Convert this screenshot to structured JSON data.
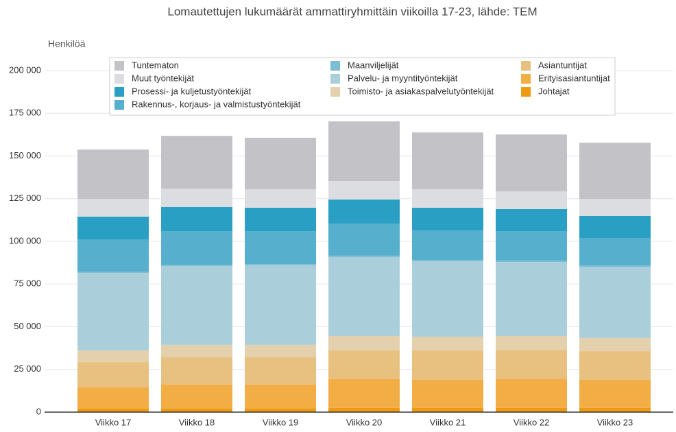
{
  "chart_data": {
    "type": "stacked-bar",
    "title": "Lomautettujen lukumäärät ammattiryhmittäin viikoilla 17-23, lähde: TEM",
    "y_label": "Henkilöä",
    "categories": [
      "Viikko 17",
      "Viikko 18",
      "Viikko 19",
      "Viikko 20",
      "Viikko 21",
      "Viikko 22",
      "Viikko 23"
    ],
    "series": [
      {
        "name": "Tuntematon",
        "color": "#c3c2c7",
        "values": [
          28900,
          30900,
          30200,
          35000,
          33300,
          33300,
          32900
        ]
      },
      {
        "name": "Muut työntekijät",
        "color": "#dcdde1",
        "values": [
          10400,
          10800,
          10800,
          10800,
          10800,
          10400,
          10000
        ]
      },
      {
        "name": "Prosessi- ja kuljetustyöntekijät",
        "color": "#2a9fc4",
        "values": [
          13300,
          14100,
          13700,
          14100,
          13300,
          12900,
          12900
        ]
      },
      {
        "name": "Rakennus-, korjaus- ja valmistustyöntekijät",
        "color": "#55afcd",
        "values": [
          18900,
          19700,
          19300,
          18800,
          17300,
          17200,
          16100
        ]
      },
      {
        "name": "Maanviljelijät",
        "color": "#7dbdd3",
        "values": [
          800,
          800,
          800,
          800,
          800,
          900,
          800
        ]
      },
      {
        "name": "Palvelu- ja myyntityöntekijät",
        "color": "#aacfdb",
        "values": [
          45400,
          46100,
          46500,
          46200,
          44100,
          43300,
          41700
        ]
      },
      {
        "name": "Toimisto- ja asiakaspalvelutyöntekijät",
        "color": "#e4d0ad",
        "values": [
          6800,
          7300,
          7300,
          8500,
          8100,
          8100,
          7700
        ]
      },
      {
        "name": "Asiantuntijat",
        "color": "#e8c07f",
        "values": [
          14800,
          16000,
          16000,
          16800,
          17200,
          17200,
          16800
        ]
      },
      {
        "name": "Erityisasiantuntijat",
        "color": "#f2ad45",
        "values": [
          12500,
          14100,
          14100,
          16800,
          16400,
          16800,
          16400
        ]
      },
      {
        "name": "Johtajat",
        "color": "#ee9a12",
        "values": [
          2000,
          2000,
          2000,
          2500,
          2500,
          2500,
          2500
        ]
      }
    ],
    "ylim": [
      0,
      200000
    ],
    "yticks": [
      0,
      {
        "value": 25000,
        "label": "25 000"
      },
      {
        "value": 50000,
        "label": "50 000"
      },
      {
        "value": 75000,
        "label": "75 000"
      },
      {
        "value": 100000,
        "label": "100 000"
      },
      {
        "value": 125000,
        "label": "125 000"
      },
      {
        "value": 150000,
        "label": "150 000"
      },
      {
        "value": 175000,
        "label": "175 000"
      },
      {
        "value": 200000,
        "label": "200 000"
      }
    ],
    "grid": true
  }
}
